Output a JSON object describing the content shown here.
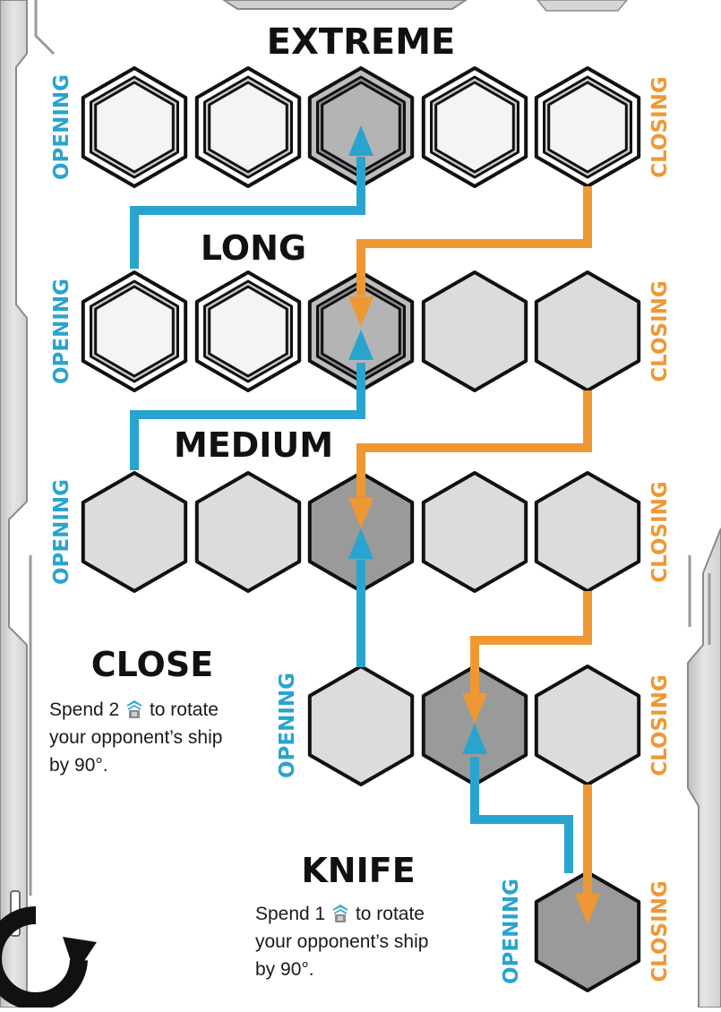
{
  "ranges": [
    {
      "title": "Extreme",
      "opening": "Opening",
      "closing": "Closing"
    },
    {
      "title": "Long",
      "opening": "Opening",
      "closing": "Closing"
    },
    {
      "title": "Medium",
      "opening": "Opening",
      "closing": "Closing"
    },
    {
      "title": "Close",
      "opening": "Opening",
      "closing": "Closing",
      "desc_before": "Spend 2",
      "desc_after": "to rotate",
      "desc_line2": "your opponent’s ship",
      "desc_line3": "by 90°."
    },
    {
      "title": "Knife",
      "opening": "Opening",
      "closing": "Closing",
      "desc_before": "Spend 1",
      "desc_after": "to rotate",
      "desc_line2": "your opponent’s ship",
      "desc_line3": "by 90°."
    }
  ],
  "colors": {
    "opening": "#29a4cf",
    "closing": "#ef9833",
    "hex_light": "#dcdcdc",
    "hex_dark": "#9a9a9a",
    "hex_white": "#f4f4f4"
  },
  "icons": {
    "token": "ship-token-icon",
    "rotate": "rotate-arrow-icon"
  }
}
